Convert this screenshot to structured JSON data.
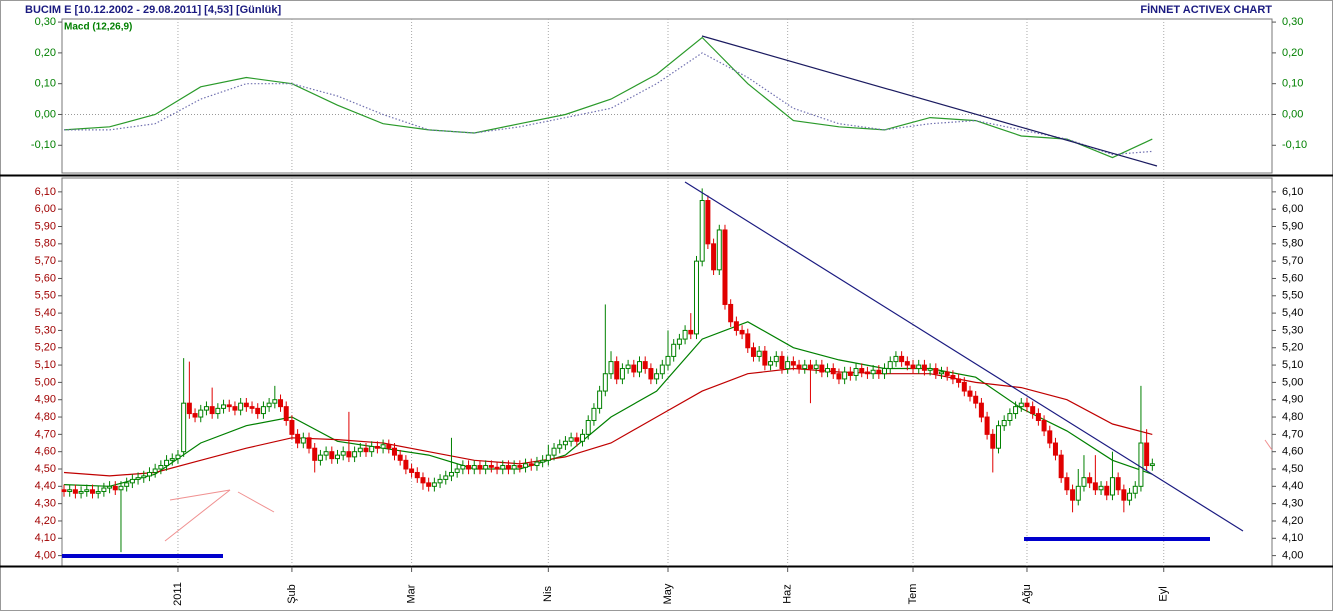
{
  "header": {
    "title": "BUCIM E  [10.12.2002 - 29.08.2011]  [4,53]  [Günlük]",
    "brand": "FİNNET ACTIVEX CHART"
  },
  "chart_data": [
    {
      "type": "line",
      "title": "Macd (12,26,9)",
      "title_color": "#008000",
      "xlim": [
        -0.35,
        212
      ],
      "ylim": [
        -0.19,
        0.31
      ],
      "yticks": [
        {
          "value": 0.3,
          "label": "0,30"
        },
        {
          "value": 0.2,
          "label": "0,20"
        },
        {
          "value": 0.1,
          "label": "0,10"
        },
        {
          "value": 0,
          "label": "0,00"
        },
        {
          "value": -0.1,
          "label": "-0,10"
        }
      ],
      "tick_color": "#008000",
      "zeroline": true,
      "grid": true,
      "series": [
        {
          "color": "#2a9a2a",
          "dash": false,
          "x": [
            0,
            8,
            16,
            24,
            32,
            40,
            48,
            56,
            64,
            72,
            80,
            88,
            96,
            104,
            112,
            120,
            128,
            136,
            144,
            152,
            160,
            168,
            176,
            184,
            191
          ],
          "values": [
            -0.05,
            -0.04,
            0.0,
            0.09,
            0.12,
            0.1,
            0.03,
            -0.03,
            -0.05,
            -0.06,
            -0.03,
            0.0,
            0.05,
            0.13,
            0.25,
            0.1,
            -0.02,
            -0.04,
            -0.05,
            -0.01,
            -0.02,
            -0.07,
            -0.08,
            -0.14,
            -0.08
          ]
        },
        {
          "color": "#7070b0",
          "dash": true,
          "x": [
            0,
            8,
            16,
            24,
            32,
            40,
            48,
            56,
            64,
            72,
            80,
            88,
            96,
            104,
            112,
            120,
            128,
            136,
            144,
            152,
            160,
            168,
            176,
            184,
            191
          ],
          "values": [
            -0.05,
            -0.05,
            -0.03,
            0.05,
            0.1,
            0.1,
            0.06,
            0.0,
            -0.05,
            -0.06,
            -0.04,
            -0.01,
            0.02,
            0.1,
            0.2,
            0.12,
            0.02,
            -0.03,
            -0.05,
            -0.03,
            -0.02,
            -0.05,
            -0.08,
            -0.13,
            -0.12
          ]
        }
      ]
    },
    {
      "type": "candlestick",
      "up_color": "#008000",
      "down_color": "#e00000",
      "tick_color": "#a00000",
      "grid": true,
      "xlim": [
        -0.35,
        212
      ],
      "ylim": [
        3.94,
        6.18
      ],
      "xticks": [
        {
          "value": 20,
          "label": "2011"
        },
        {
          "value": 40,
          "label": "Şub"
        },
        {
          "value": 61,
          "label": "Mar"
        },
        {
          "value": 85,
          "label": "Nis"
        },
        {
          "value": 106,
          "label": "May"
        },
        {
          "value": 127,
          "label": "Haz"
        },
        {
          "value": 149,
          "label": "Tem"
        },
        {
          "value": 169,
          "label": "Ağu"
        },
        {
          "value": 193,
          "label": "Eyl"
        }
      ],
      "yticks": [
        {
          "value": 6.1,
          "label": "6,10"
        },
        {
          "value": 6.0,
          "label": "6,00"
        },
        {
          "value": 5.9,
          "label": "5,90"
        },
        {
          "value": 5.8,
          "label": "5,80"
        },
        {
          "value": 5.7,
          "label": "5,70"
        },
        {
          "value": 5.6,
          "label": "5,60"
        },
        {
          "value": 5.5,
          "label": "5,50"
        },
        {
          "value": 5.4,
          "label": "5,40"
        },
        {
          "value": 5.3,
          "label": "5,30"
        },
        {
          "value": 5.2,
          "label": "5,20"
        },
        {
          "value": 5.1,
          "label": "5,10"
        },
        {
          "value": 5.0,
          "label": "5,00"
        },
        {
          "value": 4.9,
          "label": "4,90"
        },
        {
          "value": 4.8,
          "label": "4,80"
        },
        {
          "value": 4.7,
          "label": "4,70"
        },
        {
          "value": 4.6,
          "label": "4,60"
        },
        {
          "value": 4.5,
          "label": "4,50"
        },
        {
          "value": 4.4,
          "label": "4,40"
        },
        {
          "value": 4.3,
          "label": "4,30"
        },
        {
          "value": 4.2,
          "label": "4,20"
        },
        {
          "value": 4.1,
          "label": "4,10"
        },
        {
          "value": 4.0,
          "label": "4,00"
        }
      ],
      "open": [
        4.38,
        4.37,
        4.38,
        4.36,
        4.37,
        4.38,
        4.36,
        4.37,
        4.39,
        4.4,
        4.38,
        4.4,
        4.42,
        4.44,
        4.45,
        4.46,
        4.48,
        4.5,
        4.52,
        4.55,
        4.56,
        4.6,
        4.88,
        4.82,
        4.8,
        4.84,
        4.86,
        4.82,
        4.85,
        4.87,
        4.86,
        4.84,
        4.88,
        4.86,
        4.85,
        4.82,
        4.86,
        4.88,
        4.9,
        4.86,
        4.78,
        4.7,
        4.65,
        4.68,
        4.62,
        4.55,
        4.58,
        4.6,
        4.56,
        4.58,
        4.6,
        4.57,
        4.6,
        4.62,
        4.6,
        4.63,
        4.62,
        4.64,
        4.62,
        4.58,
        4.55,
        4.5,
        4.48,
        4.45,
        4.42,
        4.4,
        4.42,
        4.44,
        4.46,
        4.48,
        4.5,
        4.52,
        4.5,
        4.52,
        4.5,
        4.52,
        4.51,
        4.5,
        4.52,
        4.5,
        4.52,
        4.51,
        4.53,
        4.52,
        4.54,
        4.55,
        4.58,
        4.62,
        4.64,
        4.66,
        4.68,
        4.66,
        4.7,
        4.78,
        4.85,
        4.95,
        5.05,
        5.12,
        5.02,
        5.08,
        5.1,
        5.06,
        5.12,
        5.08,
        5.02,
        5.05,
        5.1,
        5.15,
        5.22,
        5.25,
        5.3,
        5.28,
        5.7,
        6.05,
        5.8,
        5.65,
        5.88,
        5.45,
        5.35,
        5.3,
        5.28,
        5.2,
        5.15,
        5.18,
        5.1,
        5.12,
        5.15,
        5.08,
        5.12,
        5.1,
        5.08,
        5.1,
        5.08,
        5.1,
        5.06,
        5.08,
        5.05,
        5.02,
        5.06,
        5.04,
        5.08,
        5.06,
        5.05,
        5.07,
        5.05,
        5.08,
        5.12,
        5.15,
        5.12,
        5.1,
        5.08,
        5.1,
        5.07,
        5.08,
        5.05,
        5.06,
        5.04,
        5.02,
        5.0,
        4.95,
        4.92,
        4.88,
        4.8,
        4.7,
        4.62,
        4.75,
        4.78,
        4.82,
        4.86,
        4.88,
        4.86,
        4.82,
        4.78,
        4.72,
        4.65,
        4.58,
        4.45,
        4.38,
        4.32,
        4.4,
        4.45,
        4.42,
        4.38,
        4.4,
        4.35,
        4.45,
        4.38,
        4.32,
        4.36,
        4.4,
        4.65,
        4.52
      ],
      "high": [
        4.41,
        4.41,
        4.41,
        4.4,
        4.41,
        4.41,
        4.4,
        4.42,
        4.43,
        4.43,
        4.43,
        4.45,
        4.47,
        4.48,
        4.49,
        4.51,
        4.53,
        4.55,
        4.58,
        4.59,
        4.61,
        5.14,
        5.12,
        4.85,
        4.87,
        4.89,
        4.97,
        4.88,
        4.9,
        4.9,
        4.89,
        4.91,
        4.91,
        4.89,
        4.88,
        4.89,
        4.91,
        4.98,
        4.93,
        4.89,
        4.81,
        4.73,
        4.71,
        4.71,
        4.65,
        4.61,
        4.63,
        4.63,
        4.61,
        4.63,
        4.83,
        4.63,
        4.65,
        4.65,
        4.66,
        4.66,
        4.67,
        4.67,
        4.65,
        4.61,
        4.58,
        4.53,
        4.51,
        4.48,
        4.45,
        4.45,
        4.47,
        4.49,
        4.68,
        4.53,
        4.55,
        4.55,
        4.55,
        4.55,
        4.55,
        4.55,
        4.54,
        4.55,
        4.55,
        4.55,
        4.55,
        4.56,
        4.56,
        4.57,
        4.58,
        4.64,
        4.65,
        4.67,
        4.69,
        4.71,
        4.71,
        4.73,
        4.81,
        4.88,
        4.98,
        5.45,
        5.18,
        5.15,
        5.11,
        5.13,
        5.13,
        5.15,
        5.15,
        5.11,
        5.08,
        5.13,
        5.3,
        5.25,
        5.28,
        5.33,
        5.4,
        5.73,
        6.12,
        6.08,
        5.83,
        5.91,
        5.91,
        5.48,
        5.38,
        5.33,
        5.31,
        5.23,
        5.21,
        5.21,
        5.15,
        5.18,
        5.18,
        5.15,
        5.15,
        5.13,
        5.13,
        5.13,
        5.13,
        5.13,
        5.11,
        5.11,
        5.08,
        5.09,
        5.09,
        5.11,
        5.11,
        5.09,
        5.1,
        5.1,
        5.11,
        5.15,
        5.18,
        5.18,
        5.15,
        5.13,
        5.13,
        5.13,
        5.11,
        5.11,
        5.09,
        5.09,
        5.07,
        5.05,
        5.03,
        4.98,
        4.95,
        4.91,
        4.83,
        4.73,
        4.78,
        4.81,
        4.85,
        4.89,
        4.91,
        4.91,
        4.89,
        4.85,
        4.81,
        4.75,
        4.68,
        4.61,
        4.48,
        4.41,
        4.5,
        4.58,
        4.48,
        4.58,
        4.43,
        4.43,
        4.6,
        4.48,
        4.41,
        4.39,
        4.43,
        4.98,
        4.73,
        4.56
      ],
      "low": [
        4.34,
        4.34,
        4.33,
        4.33,
        4.34,
        4.33,
        4.33,
        4.34,
        4.36,
        4.35,
        4.02,
        4.37,
        4.39,
        4.41,
        4.42,
        4.43,
        4.45,
        4.47,
        4.49,
        4.52,
        4.53,
        4.57,
        4.79,
        4.77,
        4.77,
        4.81,
        4.79,
        4.79,
        4.82,
        4.83,
        4.81,
        4.81,
        4.83,
        4.82,
        4.79,
        4.79,
        4.83,
        4.85,
        4.83,
        4.75,
        4.67,
        4.62,
        4.62,
        4.59,
        4.48,
        4.52,
        4.55,
        4.53,
        4.53,
        4.55,
        4.54,
        4.54,
        4.57,
        4.57,
        4.57,
        4.59,
        4.59,
        4.59,
        4.55,
        4.52,
        4.47,
        4.45,
        4.42,
        4.38,
        4.37,
        4.37,
        4.39,
        4.41,
        4.43,
        4.45,
        4.47,
        4.47,
        4.47,
        4.47,
        4.47,
        4.48,
        4.47,
        4.47,
        4.47,
        4.47,
        4.48,
        4.48,
        4.49,
        4.49,
        4.51,
        4.52,
        4.55,
        4.59,
        4.61,
        4.63,
        4.63,
        4.63,
        4.67,
        4.75,
        4.82,
        4.92,
        5.02,
        4.99,
        4.99,
        5.05,
        5.03,
        5.03,
        5.05,
        4.99,
        4.99,
        5.02,
        5.07,
        5.12,
        5.19,
        5.22,
        5.25,
        5.25,
        5.67,
        5.77,
        5.62,
        5.62,
        5.42,
        5.32,
        5.27,
        5.25,
        5.17,
        5.12,
        5.12,
        5.07,
        5.07,
        5.09,
        5.05,
        5.05,
        5.07,
        5.05,
        5.05,
        4.88,
        5.05,
        5.03,
        5.03,
        5.02,
        4.99,
        4.99,
        5.01,
        5.01,
        5.03,
        5.02,
        5.02,
        5.02,
        5.02,
        5.05,
        5.09,
        5.09,
        5.07,
        5.05,
        5.05,
        5.04,
        5.04,
        5.02,
        5.02,
        5.01,
        4.99,
        4.97,
        4.92,
        4.89,
        4.85,
        4.77,
        4.67,
        4.48,
        4.59,
        4.72,
        4.75,
        4.79,
        4.83,
        4.83,
        4.79,
        4.75,
        4.69,
        4.62,
        4.55,
        4.42,
        4.35,
        4.25,
        4.29,
        4.37,
        4.39,
        4.35,
        4.35,
        4.32,
        4.32,
        4.35,
        4.25,
        4.29,
        4.33,
        4.37,
        4.49,
        4.49
      ],
      "close": [
        4.37,
        4.38,
        4.36,
        4.37,
        4.38,
        4.36,
        4.37,
        4.39,
        4.4,
        4.38,
        4.4,
        4.42,
        4.44,
        4.45,
        4.46,
        4.48,
        4.5,
        4.52,
        4.55,
        4.56,
        4.58,
        4.88,
        4.82,
        4.8,
        4.84,
        4.86,
        4.82,
        4.85,
        4.87,
        4.86,
        4.84,
        4.88,
        4.86,
        4.85,
        4.82,
        4.86,
        4.88,
        4.9,
        4.86,
        4.78,
        4.7,
        4.65,
        4.68,
        4.62,
        4.55,
        4.58,
        4.6,
        4.56,
        4.58,
        4.6,
        4.57,
        4.6,
        4.62,
        4.6,
        4.63,
        4.62,
        4.64,
        4.62,
        4.58,
        4.55,
        4.5,
        4.48,
        4.45,
        4.42,
        4.4,
        4.42,
        4.44,
        4.46,
        4.48,
        4.5,
        4.52,
        4.5,
        4.52,
        4.5,
        4.52,
        4.51,
        4.5,
        4.52,
        4.5,
        4.52,
        4.51,
        4.53,
        4.52,
        4.54,
        4.55,
        4.58,
        4.62,
        4.64,
        4.66,
        4.68,
        4.66,
        4.7,
        4.78,
        4.85,
        4.95,
        5.05,
        5.12,
        5.02,
        5.08,
        5.1,
        5.06,
        5.12,
        5.08,
        5.02,
        5.05,
        5.1,
        5.15,
        5.22,
        5.25,
        5.3,
        5.28,
        5.7,
        6.05,
        5.8,
        5.65,
        5.88,
        5.45,
        5.35,
        5.3,
        5.28,
        5.2,
        5.15,
        5.18,
        5.1,
        5.12,
        5.15,
        5.08,
        5.12,
        5.1,
        5.08,
        5.1,
        5.08,
        5.1,
        5.06,
        5.08,
        5.05,
        5.02,
        5.06,
        5.04,
        5.08,
        5.06,
        5.05,
        5.07,
        5.05,
        5.08,
        5.12,
        5.15,
        5.12,
        5.1,
        5.08,
        5.1,
        5.07,
        5.08,
        5.05,
        5.06,
        5.04,
        5.02,
        5.0,
        4.95,
        4.92,
        4.88,
        4.8,
        4.7,
        4.62,
        4.75,
        4.78,
        4.82,
        4.86,
        4.88,
        4.86,
        4.82,
        4.78,
        4.72,
        4.65,
        4.58,
        4.45,
        4.38,
        4.32,
        4.4,
        4.45,
        4.42,
        4.38,
        4.4,
        4.35,
        4.45,
        4.38,
        4.32,
        4.36,
        4.4,
        4.65,
        4.52,
        4.53
      ],
      "series": [
        {
          "color": "#008000",
          "x": [
            0,
            8,
            16,
            24,
            32,
            40,
            48,
            56,
            64,
            72,
            80,
            88,
            96,
            104,
            112,
            120,
            128,
            136,
            144,
            152,
            160,
            168,
            176,
            184,
            191
          ],
          "values": [
            4.41,
            4.4,
            4.47,
            4.65,
            4.75,
            4.8,
            4.66,
            4.62,
            4.58,
            4.5,
            4.5,
            4.58,
            4.8,
            4.95,
            5.25,
            5.35,
            5.2,
            5.13,
            5.08,
            5.08,
            5.03,
            4.85,
            4.72,
            4.55,
            4.47
          ]
        },
        {
          "color": "#c00000",
          "x": [
            0,
            8,
            16,
            24,
            32,
            40,
            48,
            56,
            64,
            72,
            80,
            88,
            96,
            104,
            112,
            120,
            128,
            136,
            144,
            152,
            160,
            168,
            176,
            184,
            191
          ],
          "values": [
            4.48,
            4.46,
            4.48,
            4.55,
            4.62,
            4.68,
            4.67,
            4.65,
            4.6,
            4.55,
            4.53,
            4.57,
            4.65,
            4.8,
            4.95,
            5.05,
            5.08,
            5.06,
            5.05,
            5.05,
            5.0,
            4.97,
            4.9,
            4.76,
            4.7
          ]
        }
      ]
    }
  ]
}
